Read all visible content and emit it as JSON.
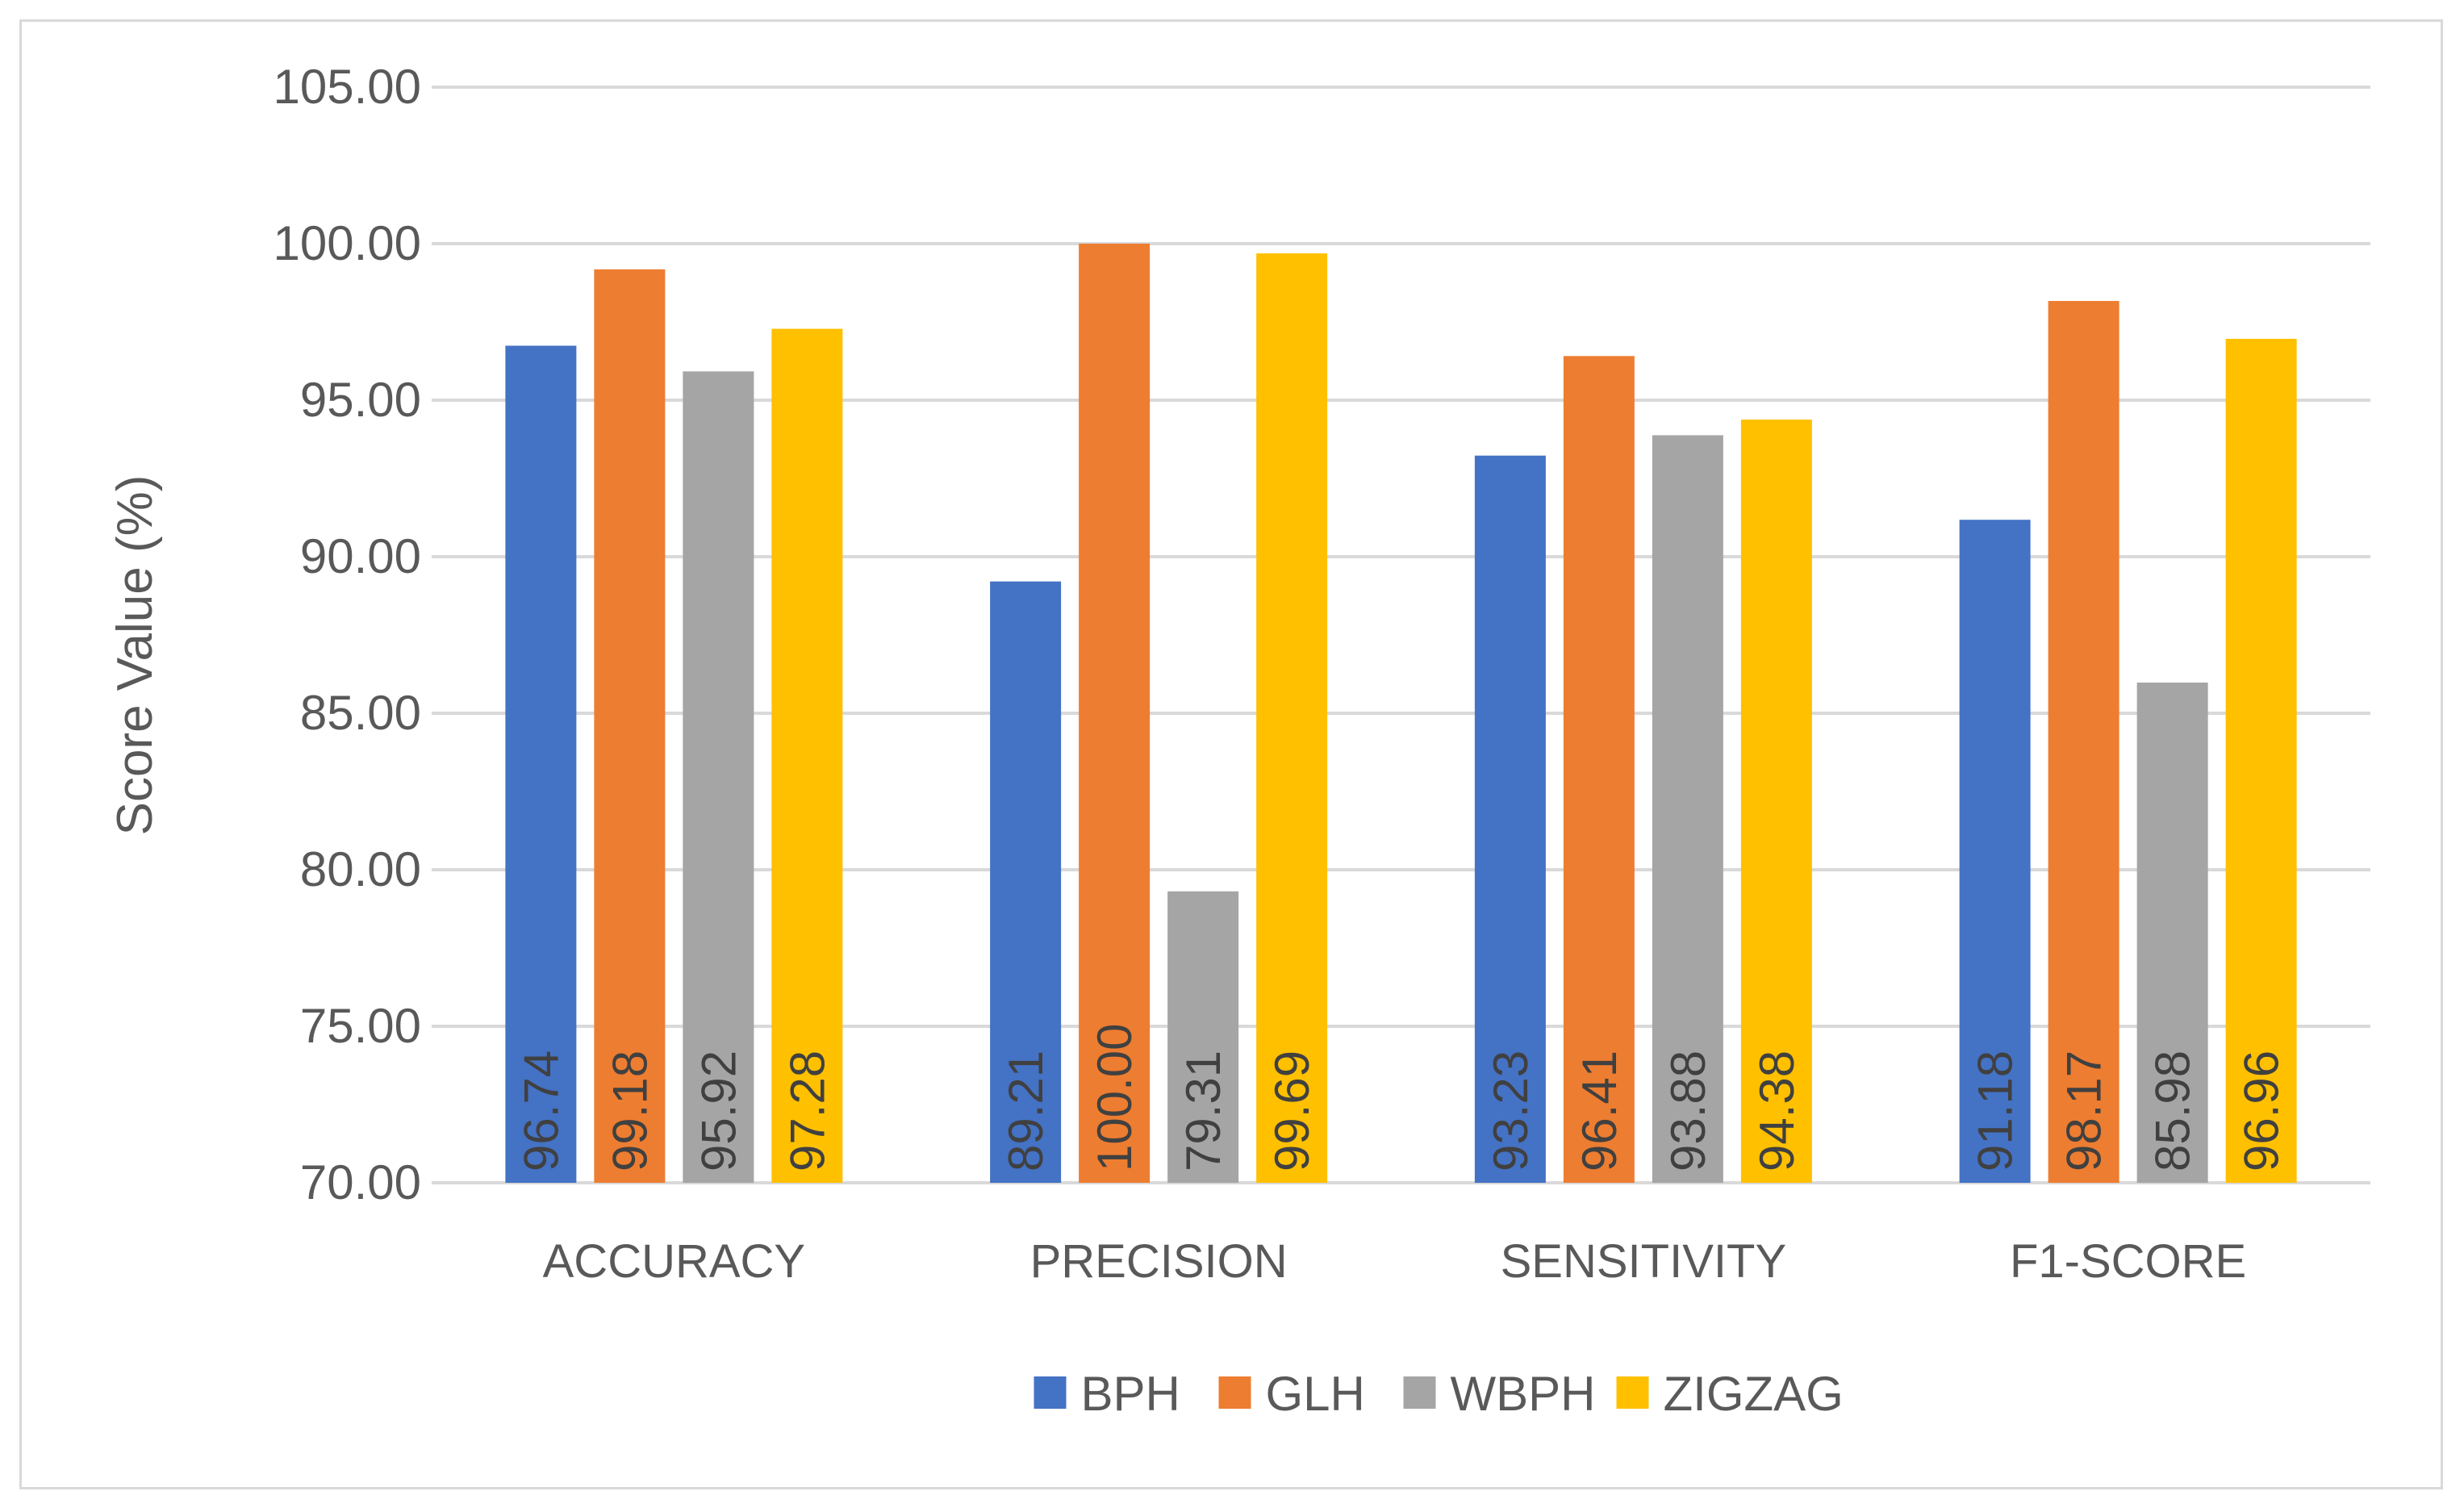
{
  "chart_data": {
    "type": "bar",
    "title": "",
    "xlabel": "",
    "ylabel": "Score Value (%)",
    "ylim": [
      70,
      105
    ],
    "ytick_step": 5,
    "ytick_labels": [
      "70.00",
      "75.00",
      "80.00",
      "85.00",
      "90.00",
      "95.00",
      "100.00",
      "105.00"
    ],
    "grid": true,
    "legend_position": "bottom",
    "categories": [
      "ACCURACY",
      "PRECISION",
      "SENSITIVITY",
      "F1-SCORE"
    ],
    "series": [
      {
        "name": "BPH",
        "color": "#4472C4",
        "values": [
          96.74,
          89.21,
          93.23,
          91.18
        ],
        "labels": [
          "96.74",
          "89.21",
          "93.23",
          "91.18"
        ]
      },
      {
        "name": "GLH",
        "color": "#ED7D31",
        "values": [
          99.18,
          100.0,
          96.41,
          98.17
        ],
        "labels": [
          "99.18",
          "100.00",
          "96.41",
          "98.17"
        ]
      },
      {
        "name": "WBPH",
        "color": "#A5A5A5",
        "values": [
          95.92,
          79.31,
          93.88,
          85.98
        ],
        "labels": [
          "95.92",
          "79.31",
          "93.88",
          "85.98"
        ]
      },
      {
        "name": "ZIGZAG",
        "color": "#FFC000",
        "values": [
          97.28,
          99.69,
          94.38,
          96.96
        ],
        "labels": [
          "97.28",
          "99.69",
          "94.38",
          "96.96"
        ]
      }
    ]
  }
}
